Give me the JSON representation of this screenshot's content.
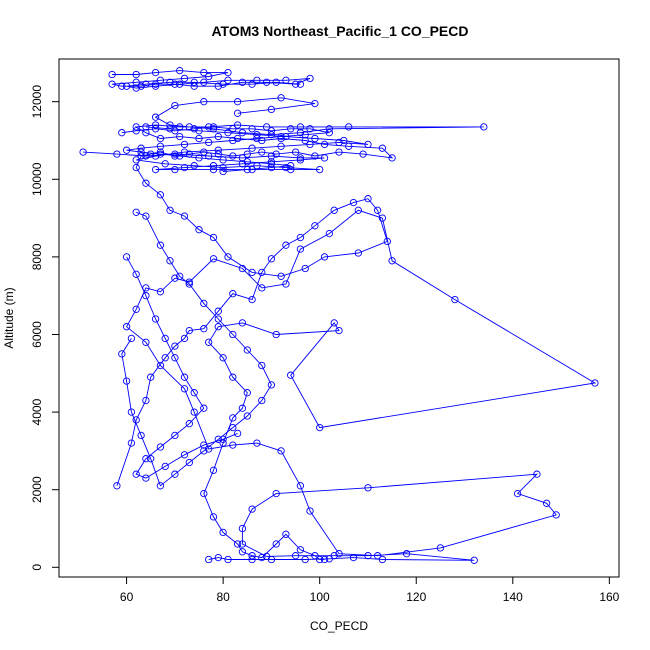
{
  "chart_data": {
    "type": "line",
    "title": "ATOM3 Northeast_Pacific_1 CO_PECD",
    "xlabel": "CO_PECD",
    "ylabel": "Altitude (m)",
    "xlim": [
      46,
      162
    ],
    "ylim": [
      -250,
      13100
    ],
    "xticks": [
      60,
      80,
      100,
      120,
      140,
      160
    ],
    "yticks": [
      0,
      2000,
      4000,
      6000,
      8000,
      10000,
      12000
    ],
    "marker": "open-circle",
    "color": "#0000ff",
    "grid": false,
    "series": [
      {
        "points": [
          [
            77,
            200
          ],
          [
            79,
            250
          ],
          [
            81,
            200
          ],
          [
            86,
            200
          ],
          [
            90,
            200
          ],
          [
            97,
            200
          ],
          [
            102,
            220
          ],
          [
            107,
            250
          ],
          [
            113,
            200
          ],
          [
            132,
            180
          ],
          [
            118,
            350
          ],
          [
            110,
            300
          ],
          [
            103,
            300
          ],
          [
            95,
            300
          ],
          [
            89,
            280
          ],
          [
            84,
            600
          ],
          [
            84,
            1000
          ],
          [
            86,
            1500
          ],
          [
            91,
            1900
          ],
          [
            110,
            2050
          ],
          [
            145,
            2400
          ],
          [
            141,
            1900
          ],
          [
            147,
            1650
          ],
          [
            149,
            1350
          ],
          [
            125,
            500
          ],
          [
            112,
            300
          ],
          [
            104,
            350
          ],
          [
            98,
            1450
          ],
          [
            96,
            2100
          ],
          [
            92,
            3000
          ],
          [
            87,
            3200
          ],
          [
            82,
            3150
          ],
          [
            77,
            3050
          ],
          [
            74,
            4000
          ],
          [
            72,
            4600
          ],
          [
            67,
            5200
          ],
          [
            64,
            5800
          ],
          [
            60,
            6200
          ],
          [
            62,
            6650
          ],
          [
            64,
            7200
          ],
          [
            67,
            7100
          ],
          [
            70,
            7450
          ],
          [
            73,
            7350
          ],
          [
            78,
            7950
          ],
          [
            84,
            7700
          ],
          [
            88,
            7200
          ],
          [
            93,
            7300
          ],
          [
            96,
            8200
          ],
          [
            102,
            8600
          ],
          [
            108,
            9200
          ],
          [
            113,
            9000
          ],
          [
            115,
            7900
          ],
          [
            128,
            6900
          ],
          [
            157,
            4750
          ],
          [
            100,
            3600
          ],
          [
            94,
            4950
          ],
          [
            103,
            6300
          ],
          [
            104,
            6100
          ],
          [
            91,
            6000
          ],
          [
            84,
            6300
          ],
          [
            79,
            6200
          ],
          [
            77,
            5800
          ],
          [
            80,
            5400
          ],
          [
            82,
            4900
          ],
          [
            85,
            4500
          ],
          [
            84,
            4100
          ],
          [
            82,
            3850
          ],
          [
            80,
            3200
          ],
          [
            78,
            2500
          ],
          [
            76,
            1900
          ],
          [
            78,
            1300
          ],
          [
            80,
            900
          ],
          [
            83,
            600
          ],
          [
            84,
            400
          ],
          [
            86,
            300
          ],
          [
            88,
            250
          ],
          [
            91,
            600
          ],
          [
            93,
            850
          ],
          [
            96,
            450
          ],
          [
            99,
            300
          ],
          [
            100,
            200
          ],
          [
            101,
            200
          ]
        ]
      },
      {
        "points": [
          [
            58,
            2100
          ],
          [
            61,
            3200
          ],
          [
            62,
            3800
          ],
          [
            64,
            4300
          ],
          [
            65,
            4900
          ],
          [
            68,
            5400
          ],
          [
            70,
            5700
          ],
          [
            72,
            5900
          ],
          [
            73,
            6100
          ],
          [
            76,
            6150
          ],
          [
            79,
            6600
          ],
          [
            82,
            7050
          ],
          [
            86,
            6900
          ],
          [
            88,
            7600
          ],
          [
            90,
            7950
          ],
          [
            93,
            8300
          ],
          [
            96,
            8500
          ],
          [
            99,
            8800
          ],
          [
            103,
            9200
          ],
          [
            107,
            9400
          ],
          [
            110,
            9500
          ],
          [
            112,
            9200
          ],
          [
            114,
            8400
          ],
          [
            108,
            8100
          ],
          [
            101,
            8000
          ],
          [
            97,
            7700
          ],
          [
            92,
            7500
          ],
          [
            86,
            7600
          ],
          [
            81,
            8000
          ],
          [
            78,
            8500
          ],
          [
            75,
            8700
          ],
          [
            72,
            9050
          ],
          [
            69,
            9200
          ],
          [
            67,
            9600
          ],
          [
            64,
            9900
          ],
          [
            62,
            10300
          ],
          [
            63,
            10600
          ],
          [
            65,
            10650
          ],
          [
            67,
            10700
          ],
          [
            70,
            10600
          ],
          [
            73,
            10650
          ],
          [
            76,
            10700
          ],
          [
            79,
            10650
          ],
          [
            82,
            10600
          ],
          [
            85,
            10650
          ],
          [
            88,
            10700
          ],
          [
            91,
            10650
          ],
          [
            95,
            10700
          ],
          [
            99,
            10600
          ],
          [
            104,
            10700
          ],
          [
            109,
            10650
          ],
          [
            115,
            10550
          ],
          [
            113,
            10800
          ],
          [
            106,
            10850
          ],
          [
            101,
            10900
          ],
          [
            97,
            11000
          ],
          [
            92,
            11050
          ],
          [
            88,
            11000
          ],
          [
            83,
            11050
          ],
          [
            79,
            11100
          ],
          [
            75,
            11050
          ],
          [
            71,
            11100
          ],
          [
            67,
            11050
          ],
          [
            64,
            11200
          ],
          [
            62,
            11350
          ],
          [
            66,
            11400
          ],
          [
            71,
            11350
          ],
          [
            77,
            11350
          ],
          [
            83,
            11400
          ],
          [
            89,
            11350
          ],
          [
            96,
            11350
          ],
          [
            106,
            11350
          ],
          [
            134,
            11350
          ],
          [
            102,
            11300
          ],
          [
            96,
            11200
          ],
          [
            90,
            11150
          ],
          [
            84,
            11200
          ],
          [
            78,
            11300
          ],
          [
            73,
            11350
          ],
          [
            69,
            11400
          ],
          [
            66,
            11600
          ],
          [
            70,
            11900
          ],
          [
            76,
            12000
          ],
          [
            83,
            12000
          ],
          [
            92,
            12100
          ],
          [
            99,
            11950
          ],
          [
            90,
            11800
          ],
          [
            83,
            11700
          ]
        ]
      },
      {
        "points": [
          [
            51,
            10700
          ],
          [
            58,
            10650
          ],
          [
            64,
            10600
          ],
          [
            70,
            10650
          ],
          [
            77,
            10600
          ],
          [
            84,
            10550
          ],
          [
            90,
            10600
          ],
          [
            96,
            10550
          ],
          [
            101,
            10550
          ],
          [
            96,
            10500
          ],
          [
            90,
            10450
          ],
          [
            84,
            10400
          ],
          [
            78,
            10350
          ],
          [
            72,
            10300
          ],
          [
            66,
            10250
          ],
          [
            70,
            10250
          ],
          [
            78,
            10250
          ],
          [
            86,
            10250
          ],
          [
            94,
            10250
          ],
          [
            100,
            10250
          ],
          [
            93,
            10300
          ],
          [
            87,
            10350
          ],
          [
            80,
            10300
          ],
          [
            74,
            10350
          ],
          [
            68,
            10400
          ],
          [
            62,
            10500
          ],
          [
            66,
            10600
          ],
          [
            72,
            10700
          ],
          [
            79,
            10750
          ],
          [
            86,
            10800
          ],
          [
            92,
            10850
          ],
          [
            98,
            10900
          ],
          [
            104,
            10950
          ],
          [
            110,
            10900
          ],
          [
            105,
            11000
          ],
          [
            99,
            11050
          ],
          [
            93,
            11100
          ],
          [
            87,
            11150
          ],
          [
            81,
            11200
          ],
          [
            75,
            11250
          ],
          [
            69,
            11300
          ],
          [
            64,
            11350
          ]
        ]
      },
      {
        "points": [
          [
            57,
            12700
          ],
          [
            62,
            12700
          ],
          [
            66,
            12750
          ],
          [
            71,
            12800
          ],
          [
            76,
            12750
          ],
          [
            81,
            12750
          ],
          [
            77,
            12650
          ],
          [
            72,
            12600
          ],
          [
            67,
            12550
          ],
          [
            62,
            12500
          ],
          [
            57,
            12450
          ],
          [
            59,
            12400
          ],
          [
            63,
            12400
          ],
          [
            66,
            12450
          ],
          [
            70,
            12450
          ],
          [
            74,
            12400
          ],
          [
            79,
            12400
          ],
          [
            84,
            12500
          ],
          [
            89,
            12500
          ],
          [
            95,
            12450
          ],
          [
            98,
            12600
          ],
          [
            93,
            12550
          ],
          [
            87,
            12550
          ],
          [
            81,
            12550
          ],
          [
            76,
            12500
          ],
          [
            71,
            12450
          ],
          [
            66,
            12400
          ],
          [
            62,
            12350
          ],
          [
            60,
            12400
          ],
          [
            64,
            12450
          ],
          [
            69,
            12500
          ],
          [
            74,
            12500
          ],
          [
            80,
            12450
          ],
          [
            86,
            12450
          ],
          [
            91,
            12500
          ],
          [
            96,
            12450
          ]
        ]
      },
      {
        "points": [
          [
            59,
            11200
          ],
          [
            62,
            11250
          ],
          [
            66,
            11300
          ],
          [
            70,
            11250
          ],
          [
            74,
            11300
          ],
          [
            78,
            11350
          ],
          [
            82,
            11300
          ],
          [
            86,
            11300
          ],
          [
            90,
            11250
          ],
          [
            94,
            11300
          ],
          [
            98,
            11300
          ],
          [
            102,
            11200
          ],
          [
            97,
            11150
          ],
          [
            92,
            11100
          ],
          [
            87,
            11050
          ],
          [
            82,
            11000
          ],
          [
            77,
            10950
          ],
          [
            72,
            10900
          ],
          [
            67,
            10850
          ],
          [
            63,
            10800
          ],
          [
            60,
            10750
          ],
          [
            63,
            10700
          ],
          [
            67,
            10650
          ],
          [
            71,
            10600
          ],
          [
            75,
            10550
          ],
          [
            80,
            10500
          ],
          [
            85,
            10450
          ],
          [
            90,
            10400
          ],
          [
            94,
            10350
          ],
          [
            90,
            10300
          ],
          [
            85,
            10250
          ],
          [
            80,
            10200
          ]
        ]
      },
      {
        "points": [
          [
            62,
            9150
          ],
          [
            64,
            9050
          ],
          [
            67,
            8300
          ],
          [
            69,
            7900
          ],
          [
            71,
            7500
          ],
          [
            73,
            7300
          ],
          [
            76,
            6800
          ],
          [
            79,
            6400
          ],
          [
            82,
            6000
          ],
          [
            85,
            5600
          ],
          [
            88,
            5200
          ],
          [
            90,
            4700
          ],
          [
            88,
            4300
          ],
          [
            85,
            3900
          ],
          [
            82,
            3600
          ],
          [
            79,
            3300
          ],
          [
            76,
            3000
          ],
          [
            73,
            2700
          ],
          [
            70,
            2400
          ],
          [
            67,
            2100
          ],
          [
            65,
            2800
          ],
          [
            63,
            3400
          ],
          [
            61,
            4000
          ],
          [
            60,
            4800
          ],
          [
            59,
            5500
          ],
          [
            61,
            5900
          ]
        ]
      },
      {
        "points": [
          [
            60,
            8000
          ],
          [
            62,
            7550
          ],
          [
            64,
            7000
          ],
          [
            66,
            6400
          ],
          [
            68,
            5900
          ],
          [
            70,
            5400
          ],
          [
            72,
            4900
          ],
          [
            74,
            4500
          ],
          [
            76,
            4100
          ],
          [
            73,
            3700
          ],
          [
            70,
            3400
          ],
          [
            67,
            3100
          ],
          [
            64,
            2800
          ],
          [
            62,
            2400
          ],
          [
            64,
            2300
          ],
          [
            68,
            2600
          ],
          [
            72,
            2900
          ],
          [
            76,
            3150
          ],
          [
            80,
            3300
          ],
          [
            83,
            3450
          ]
        ]
      }
    ]
  }
}
